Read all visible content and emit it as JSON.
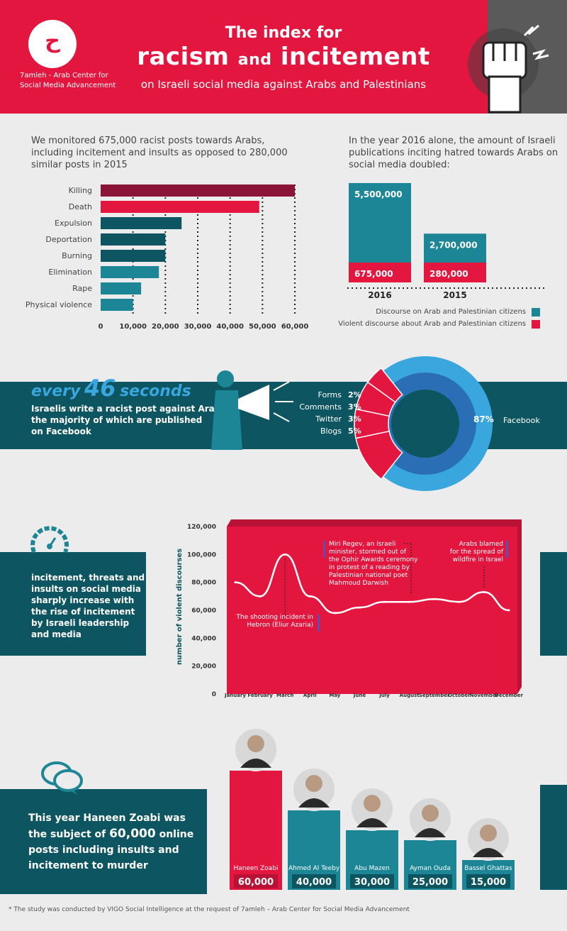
{
  "header": {
    "org_line1": "7amleh - Arab Center for",
    "org_line2": "Social Media Advancement",
    "title_line1": "The index for",
    "title_racism": "racism",
    "title_and": "and",
    "title_incitement": "incitement",
    "title_line3": "on Israeli social media against Arabs and Palestinians"
  },
  "section_monitor": {
    "intro_line1": "We monitored 675,000 racist posts towards Arabs,",
    "intro_line2": "including incitement and insults as opposed to 280,000",
    "intro_line3": "similar posts in 2015"
  },
  "section_doubled": {
    "intro_line1": "In the year 2016 alone, the amount of Israeli",
    "intro_line2": "publications inciting hatred towards Arabs on",
    "intro_line3": "social media doubled:",
    "legend_teal": "Discourse on Arab and Palestinian citizens",
    "legend_red": "Violent discourse about Arab and Palestinian citizens"
  },
  "section_seconds": {
    "every": "every",
    "num": "46",
    "seconds": "seconds",
    "line1": "Israelis write a racist post against Arabs,",
    "line2": "the majority of which are published",
    "line3": "on Facebook"
  },
  "section_trend": {
    "line1": "incitement, threats and",
    "line2": "insults on social media",
    "line3": "sharply increase with",
    "line4": "the rise of incitement",
    "line5": "by Israeli leadership",
    "line6": "and media",
    "annot_shooting_1": "The shooting incident in",
    "annot_shooting_2": "Hebron (Eliur Azaria)",
    "annot_regev_1": "Miri Regev, an Israeli",
    "annot_regev_2": "minister, stormed out of",
    "annot_regev_3": "the Ophir Awards ceremony",
    "annot_regev_4": "in protest of a reading by",
    "annot_regev_5": "Palestinian national poet",
    "annot_regev_6": "Mahmoud Darwish",
    "annot_fire_1": "Arabs blamed",
    "annot_fire_2": "for the spread of",
    "annot_fire_3": "wildfire in Israel"
  },
  "section_zoabi": {
    "line1": "This year Haneen Zoabi was",
    "line2a": "the subject of ",
    "line2b": "60,000",
    "line2c": " online",
    "line3": "posts including insults and",
    "line4": "incitement to murder"
  },
  "footer": "* The study was conducted by VIGO Social Intelligence at the request of 7amleh – Arab Center for Social Media Advancement",
  "chart_data": [
    {
      "type": "bar",
      "orientation": "horizontal",
      "categories": [
        "Killing",
        "Death",
        "Expulsion",
        "Deportation",
        "Burning",
        "Elimination",
        "Rape",
        "Physical violence"
      ],
      "values": [
        60000,
        49000,
        25000,
        20000,
        20000,
        18000,
        12500,
        10000
      ],
      "colors": [
        "#8a1538",
        "#e3163f",
        "#0d5560",
        "#0d5560",
        "#0d5560",
        "#1c8596",
        "#1c8596",
        "#1c8596"
      ],
      "xticks": [
        "0",
        "10,000",
        "20,000",
        "30,000",
        "40,000",
        "50,000",
        "60,000"
      ],
      "xlim": [
        0,
        60000
      ],
      "grid": true
    },
    {
      "type": "bar",
      "stacked": true,
      "categories": [
        "2016",
        "2015"
      ],
      "series": [
        {
          "name": "Discourse on Arab and Palestinian citizens",
          "values": [
            5500000,
            2700000
          ],
          "labels": [
            "5,500,000",
            "2,700,000"
          ],
          "color": "#1c8596"
        },
        {
          "name": "Violent discourse about Arab and Palestinian citizens",
          "values": [
            675000,
            280000
          ],
          "labels": [
            "675,000",
            "280,000"
          ],
          "color": "#e3163f"
        }
      ]
    },
    {
      "type": "pie",
      "style": "donut",
      "categories": [
        "Facebook",
        "Blogs",
        "Twitter",
        "Comments",
        "Forms"
      ],
      "values": [
        87,
        5,
        3,
        3,
        2
      ],
      "labels": [
        "87%",
        "5%",
        "3%",
        "3%",
        "2%"
      ],
      "colors": [
        "#39a6de",
        "#e3163f",
        "#e3163f",
        "#e3163f",
        "#e3163f"
      ]
    },
    {
      "type": "line",
      "x": [
        "January",
        "February",
        "March",
        "April",
        "May",
        "June",
        "July",
        "August",
        "September",
        "October",
        "November",
        "December"
      ],
      "values": [
        80000,
        70000,
        100000,
        70000,
        58000,
        62000,
        66000,
        66000,
        68000,
        66000,
        73000,
        60000
      ],
      "ylabel": "number of violent discourses",
      "yticks": [
        "0",
        "20,000",
        "40,000",
        "60,000",
        "80,000",
        "100,000",
        "120,000"
      ],
      "ylim": [
        0,
        120000
      ]
    },
    {
      "type": "bar",
      "categories": [
        "Haneen Zoabi",
        "Ahmed Al Teeby",
        "Abu Mazen",
        "Ayman Ouda",
        "Bassel Ghattas"
      ],
      "values": [
        60000,
        40000,
        30000,
        25000,
        15000
      ],
      "labels": [
        "60,000",
        "40,000",
        "30,000",
        "25,000",
        "15,000"
      ],
      "colors": [
        "#e3163f",
        "#1c8596",
        "#1c8596",
        "#1c8596",
        "#1c8596"
      ]
    }
  ]
}
